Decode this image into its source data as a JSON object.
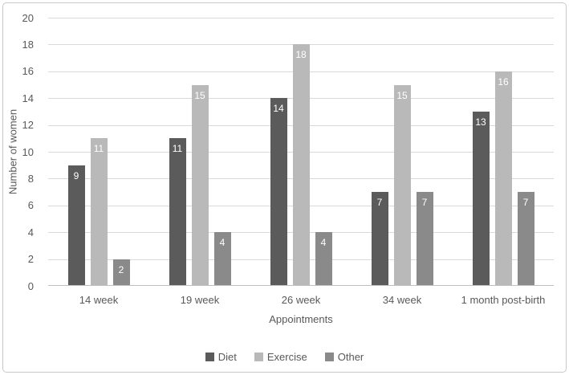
{
  "figure": {
    "frame_border_color": "#c9c9c9",
    "background_color": "#ffffff"
  },
  "chart_data": {
    "type": "bar",
    "title": "",
    "xlabel": "Appointments",
    "ylabel": "Number of women",
    "categories": [
      "14 week",
      "19 week",
      "26 week",
      "34 week",
      "1 month post-birth"
    ],
    "series": [
      {
        "name": "Diet",
        "color": "#5b5b5b",
        "values": [
          9,
          11,
          14,
          7,
          13
        ]
      },
      {
        "name": "Exercise",
        "color": "#b9b9b9",
        "values": [
          11,
          15,
          18,
          15,
          16
        ]
      },
      {
        "name": "Other",
        "color": "#8a8a8a",
        "values": [
          2,
          4,
          4,
          7,
          7
        ]
      }
    ],
    "ylim": [
      0,
      20
    ],
    "ytick_step": 2,
    "ytick_labels": [
      "0",
      "2",
      "4",
      "6",
      "8",
      "10",
      "12",
      "14",
      "16",
      "18",
      "20"
    ],
    "grid": "horizontal",
    "gridline_color": "#d9d9d9",
    "axis_line_color": "#bfbfbf",
    "text_color": "#595959",
    "data_labels": "inside-end",
    "data_label_color": "#ffffff",
    "legend_position": "bottom"
  }
}
